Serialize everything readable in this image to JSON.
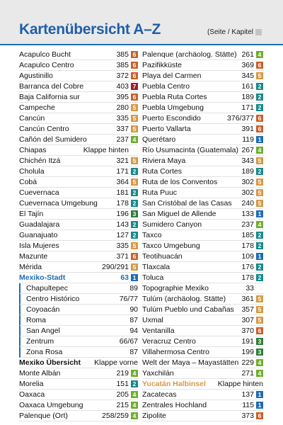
{
  "header": {
    "title": "Kartenübersicht A–Z",
    "legend": "(Seite / Kapitel"
  },
  "chapter_colors": {
    "1": "#1f6db3",
    "2": "#16898a",
    "3": "#2f7d3a",
    "4": "#6fae2e",
    "5": "#d69a45",
    "6": "#c8612b",
    "7": "#9c1f2b"
  },
  "columns": [
    {
      "rows": [
        {
          "name": "Acapulco Bucht",
          "page": "385",
          "chapter": "6"
        },
        {
          "name": "Acapulco Centro",
          "page": "385",
          "chapter": "6"
        },
        {
          "name": "Agustinillo",
          "page": "372",
          "chapter": "6"
        },
        {
          "name": "Barranca del Cobre",
          "page": "403",
          "chapter": "7"
        },
        {
          "name": "Baja California sur",
          "page": "395",
          "chapter": "6"
        },
        {
          "name": "Campeche",
          "page": "280",
          "chapter": "5"
        },
        {
          "name": "Cancún",
          "page": "335",
          "chapter": "5"
        },
        {
          "name": "Cancún Centro",
          "page": "337",
          "chapter": "5"
        },
        {
          "name": "Cañón del Sumidero",
          "page": "237",
          "chapter": "4"
        },
        {
          "name": "Chiapas",
          "page": "Klappe hinten"
        },
        {
          "name": "Chichén Itzá",
          "page": "321",
          "chapter": "5"
        },
        {
          "name": "Cholula",
          "page": "171",
          "chapter": "2"
        },
        {
          "name": "Cobá",
          "page": "364",
          "chapter": "5"
        },
        {
          "name": "Cuevernaca",
          "page": "181",
          "chapter": "2"
        },
        {
          "name": "Cuevernaca Umgebung",
          "page": "178",
          "chapter": "2"
        },
        {
          "name": "El Tajín",
          "page": "196",
          "chapter": "3"
        },
        {
          "name": "Guadalajara",
          "page": "143",
          "chapter": "2"
        },
        {
          "name": "Guanajuato",
          "page": "127",
          "chapter": "2"
        },
        {
          "name": "Isla Mujeres",
          "page": "335",
          "chapter": "5"
        },
        {
          "name": "Mazunte",
          "page": "371",
          "chapter": "6"
        },
        {
          "name": "Mérida",
          "page": "290/291",
          "chapter": "5"
        },
        {
          "name": "Mexiko-Stadt",
          "page": "63",
          "chapter": "1",
          "kind": "section"
        },
        {
          "name": "Chapultepec",
          "page": "89",
          "kind": "sub"
        },
        {
          "name": "Centro Histórico",
          "page": "76/77",
          "kind": "sub"
        },
        {
          "name": "Coyoacán",
          "page": "90",
          "kind": "sub"
        },
        {
          "name": "Roma",
          "page": "87",
          "kind": "sub"
        },
        {
          "name": "San Angel",
          "page": "94",
          "kind": "sub"
        },
        {
          "name": "Zentrum",
          "page": "66/67",
          "kind": "sub"
        },
        {
          "name": "Zona Rosa",
          "page": "87",
          "kind": "sub"
        },
        {
          "name": "Mexiko Übersicht",
          "page": "Klappe vorne",
          "kind": "bold"
        },
        {
          "name": "Monte Albán",
          "page": "219",
          "chapter": "4"
        },
        {
          "name": "Morelia",
          "page": "151",
          "chapter": "2"
        },
        {
          "name": "Oaxaca",
          "page": "205",
          "chapter": "4"
        },
        {
          "name": "Oaxaca Umgebung",
          "page": "215",
          "chapter": "4"
        },
        {
          "name": "Palenque (Ort)",
          "page": "258/259",
          "chapter": "4"
        }
      ]
    },
    {
      "rows": [
        {
          "name": "Palenque (archäolog. Stätte)",
          "page": "261",
          "chapter": "4"
        },
        {
          "name": "Pazifikküste",
          "page": "369",
          "chapter": "6"
        },
        {
          "name": "Playa del Carmen",
          "page": "345",
          "chapter": "5"
        },
        {
          "name": "Puebla Centro",
          "page": "161",
          "chapter": "2"
        },
        {
          "name": "Puebla Ruta Cortes",
          "page": "189",
          "chapter": "2"
        },
        {
          "name": "Puebla Umgebung",
          "page": "171",
          "chapter": "2"
        },
        {
          "name": "Puerto Escondido",
          "page": "376/377",
          "chapter": "6"
        },
        {
          "name": "Puerto Vallarta",
          "page": "391",
          "chapter": "6"
        },
        {
          "name": "Querétaro",
          "page": "119",
          "chapter": "1"
        },
        {
          "name": "Río Usumacinta (Guatemala)",
          "page": "267",
          "chapter": "4"
        },
        {
          "name": "Riviera Maya",
          "page": "343",
          "chapter": "5"
        },
        {
          "name": "Ruta Cortes",
          "page": "189",
          "chapter": "2"
        },
        {
          "name": "Ruta de los Conventos",
          "page": "302",
          "chapter": "5"
        },
        {
          "name": "Ruta Puuc",
          "page": "302",
          "chapter": "5"
        },
        {
          "name": "San Cristóbal de las Casas",
          "page": "240",
          "chapter": "5"
        },
        {
          "name": "San Miguel de Allende",
          "page": "133",
          "chapter": "1"
        },
        {
          "name": "Sumidero Canyon",
          "page": "237",
          "chapter": "4"
        },
        {
          "name": "Taxco",
          "page": "185",
          "chapter": "2"
        },
        {
          "name": "Taxco Umgebung",
          "page": "178",
          "chapter": "2"
        },
        {
          "name": "Teotihuacán",
          "page": "109",
          "chapter": "1"
        },
        {
          "name": "Tlaxcala",
          "page": "176",
          "chapter": "2"
        },
        {
          "name": "Toluca",
          "page": "178",
          "chapter": "2"
        },
        {
          "name": "Topographie Mexiko",
          "page": "33"
        },
        {
          "name": "Tulúm (archäolog. Stätte)",
          "page": "361",
          "chapter": "5"
        },
        {
          "name": "Tulúm Pueblo und Cabañas",
          "page": "357",
          "chapter": "5"
        },
        {
          "name": "Uxmal",
          "page": "307",
          "chapter": "5"
        },
        {
          "name": "Ventanilla",
          "page": "370",
          "chapter": "6"
        },
        {
          "name": "Veracruz Centro",
          "page": "191",
          "chapter": "3"
        },
        {
          "name": "Villahermosa Centro",
          "page": "199",
          "chapter": "3"
        },
        {
          "name": "Welt der Maya – Mayastätten",
          "page": "229",
          "chapter": "4"
        },
        {
          "name": "Yaxchilán",
          "page": "271",
          "chapter": "4"
        },
        {
          "name": "Yucatán Halbinsel",
          "page": "Klappe hinten",
          "kind": "section-alt"
        },
        {
          "name": "Zacatecas",
          "page": "137",
          "chapter": "1"
        },
        {
          "name": "Zentrales Hochland",
          "page": "115",
          "chapter": "1"
        },
        {
          "name": "Zipolite",
          "page": "373",
          "chapter": "6"
        }
      ]
    }
  ]
}
